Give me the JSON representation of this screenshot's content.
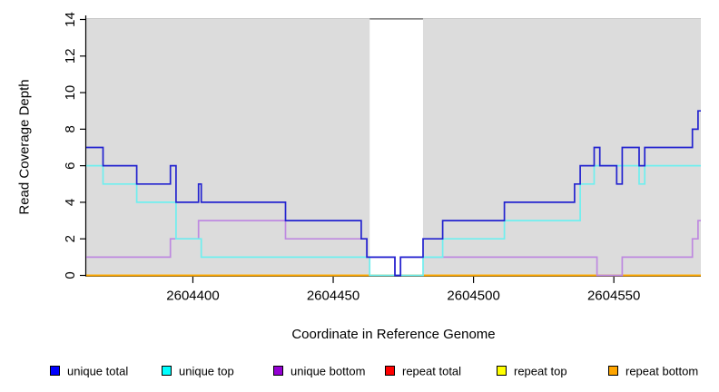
{
  "chart_data": {
    "type": "line",
    "title": "",
    "xlabel": "Coordinate in Reference Genome",
    "ylabel": "Read Coverage Depth",
    "xlim": [
      2604362,
      2604581
    ],
    "ylim": [
      0,
      14
    ],
    "x_ticks": [
      2604400,
      2604450,
      2604500,
      2604550
    ],
    "y_ticks": [
      0,
      2,
      4,
      6,
      8,
      10,
      12,
      14
    ],
    "grid": "off",
    "plot_bg_color": "#DCDCDC",
    "mask_region": {
      "from": 2604463,
      "to": 2604482,
      "fill": "#FFFFFF",
      "top_border": "#7D7D7D"
    },
    "series": [
      {
        "name": "repeat total",
        "line_color": "#E00000",
        "legend_color": "#FF0000",
        "steps": [
          [
            2604362,
            0
          ]
        ]
      },
      {
        "name": "repeat top",
        "line_color": "#FFFF00",
        "legend_color": "#FFFF00",
        "steps": [
          [
            2604362,
            0
          ]
        ]
      },
      {
        "name": "repeat bottom",
        "line_color": "#FFA500",
        "legend_color": "#FFA500",
        "steps": [
          [
            2604362,
            0
          ]
        ]
      },
      {
        "name": "unique bottom",
        "line_color": "#BE89E0",
        "legend_color": "#9400D3",
        "steps": [
          [
            2604362,
            1
          ],
          [
            2604392,
            2
          ],
          [
            2604402,
            3
          ],
          [
            2604433,
            2
          ],
          [
            2604462,
            1
          ],
          [
            2604472,
            0
          ],
          [
            2604474,
            1
          ],
          [
            2604544,
            0
          ],
          [
            2604553,
            1
          ],
          [
            2604578,
            2
          ],
          [
            2604580,
            3
          ]
        ]
      },
      {
        "name": "unique top",
        "line_color": "#6FEFEF",
        "legend_color": "#00FFFF",
        "steps": [
          [
            2604362,
            6
          ],
          [
            2604368,
            5
          ],
          [
            2604380,
            4
          ],
          [
            2604394,
            2
          ],
          [
            2604403,
            1
          ],
          [
            2604463,
            0
          ],
          [
            2604482,
            1
          ],
          [
            2604489,
            2
          ],
          [
            2604511,
            3
          ],
          [
            2604538,
            5
          ],
          [
            2604543,
            6
          ],
          [
            2604559,
            5
          ],
          [
            2604561,
            6
          ]
        ]
      },
      {
        "name": "unique total",
        "line_color": "#2323CF",
        "legend_color": "#0000FF",
        "steps": [
          [
            2604362,
            7
          ],
          [
            2604368,
            6
          ],
          [
            2604380,
            5
          ],
          [
            2604392,
            6
          ],
          [
            2604394,
            4
          ],
          [
            2604402,
            5
          ],
          [
            2604403,
            4
          ],
          [
            2604433,
            3
          ],
          [
            2604460,
            2
          ],
          [
            2604462,
            1
          ],
          [
            2604472,
            0
          ],
          [
            2604474,
            1
          ],
          [
            2604482,
            2
          ],
          [
            2604489,
            3
          ],
          [
            2604511,
            4
          ],
          [
            2604536,
            5
          ],
          [
            2604538,
            6
          ],
          [
            2604543,
            7
          ],
          [
            2604545,
            6
          ],
          [
            2604551,
            5
          ],
          [
            2604553,
            7
          ],
          [
            2604559,
            6
          ],
          [
            2604561,
            7
          ],
          [
            2604578,
            8
          ],
          [
            2604580,
            9
          ]
        ]
      }
    ],
    "legend_order": [
      "unique total",
      "unique top",
      "unique bottom",
      "repeat total",
      "repeat top",
      "repeat bottom"
    ]
  }
}
